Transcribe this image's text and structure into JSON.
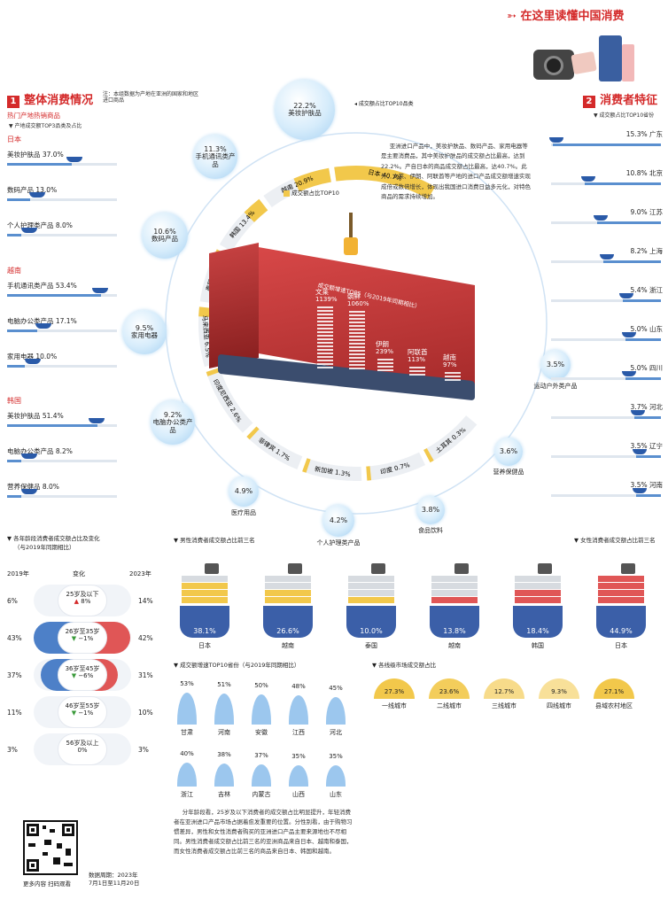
{
  "header": {
    "title": "在这里读懂中国消费",
    "brand": "中国消费"
  },
  "sec1": {
    "num": "1",
    "title": "整体消费情况",
    "note1": "注：本组数据为产地在亚洲的国家和地区",
    "note2": "进口商品",
    "hot": "热门产地热销商品",
    "sub": "产地成交额TOP3品类及占比"
  },
  "sec2": {
    "num": "2",
    "title": "消费者特征",
    "sub": "成交额占比TOP10省份"
  },
  "countries": [
    {
      "name": "日本",
      "items": [
        {
          "label": "美妆护肤品",
          "pct": "37.0%",
          "v": 37.0
        },
        {
          "label": "数码产品",
          "pct": "13.0%",
          "v": 13.0
        },
        {
          "label": "个人护理类产品",
          "pct": "8.0%",
          "v": 8.0
        }
      ]
    },
    {
      "name": "越南",
      "items": [
        {
          "label": "手机通讯类产品",
          "pct": "53.4%",
          "v": 53.4
        },
        {
          "label": "电脑办公类产品",
          "pct": "17.1%",
          "v": 17.1
        },
        {
          "label": "家用电器",
          "pct": "10.0%",
          "v": 10.0
        }
      ]
    },
    {
      "name": "韩国",
      "items": [
        {
          "label": "美妆护肤品",
          "pct": "51.4%",
          "v": 51.4
        },
        {
          "label": "电脑办公类产品",
          "pct": "8.2%",
          "v": 8.2
        },
        {
          "label": "营养保健品",
          "pct": "8.0%",
          "v": 8.0
        }
      ]
    }
  ],
  "top10_label": "成交额占比TOP10品类",
  "top10": [
    {
      "pct": "22.2%",
      "label": "美妆护肤品"
    },
    {
      "pct": "11.3%",
      "label": "手机通讯类产品"
    },
    {
      "pct": "10.6%",
      "label": "数码产品"
    },
    {
      "pct": "9.5%",
      "label": "家用电器"
    },
    {
      "pct": "9.2%",
      "label": "电脑办公类产品"
    },
    {
      "pct": "4.9%",
      "label": "医疗用品"
    },
    {
      "pct": "4.2%",
      "label": "个人护理类产品"
    },
    {
      "pct": "3.8%",
      "label": "食品饮料"
    },
    {
      "pct": "3.6%",
      "label": "营养保健品"
    },
    {
      "pct": "3.5%",
      "label": "运动户外类产品"
    }
  ],
  "ring_label": "成交额占比TOP10",
  "ring": [
    "日本 40.7%",
    "越南 20.9%",
    "韩国 13.4%",
    "泰国 9.0%",
    "马来西亚 6.5%",
    "印度尼西亚 2.6%",
    "菲律宾 1.7%",
    "新加坡 1.3%",
    "印度 0.7%",
    "土耳其 0.3%"
  ],
  "growth_title": "成交额增速TOP5（与2019年同期相比）",
  "growth": [
    {
      "name": "文莱",
      "v": "1139%",
      "value": 1139
    },
    {
      "name": "朝鲜",
      "v": "1060%",
      "value": 1060
    },
    {
      "name": "伊朗",
      "v": "239%",
      "value": 239
    },
    {
      "name": "阿联酋",
      "v": "113%",
      "value": 113
    },
    {
      "name": "越南",
      "v": "97%",
      "value": 97
    }
  ],
  "para1": "亚洲进口产品中，美妆护肤品、数码产品、家用电器等是主要消费品，其中美妆护肤品的成交额占比最高，达到22.2%。产自日本的商品成交额占比最高，达40.7%。此外，文莱、伊朗、阿联酋等产地的进口产品成交额增速实现成倍或数倍增长，体现出我国进口消费日益多元化，对特色商品的需求持续增加。",
  "provinces": [
    {
      "name": "广东",
      "pct": "15.3%",
      "v": 15.3
    },
    {
      "name": "北京",
      "pct": "10.8%",
      "v": 10.8
    },
    {
      "name": "江苏",
      "pct": "9.0%",
      "v": 9.0
    },
    {
      "name": "上海",
      "pct": "8.2%",
      "v": 8.2
    },
    {
      "name": "浙江",
      "pct": "5.4%",
      "v": 5.4
    },
    {
      "name": "山东",
      "pct": "5.0%",
      "v": 5.0
    },
    {
      "name": "四川",
      "pct": "5.0%",
      "v": 5.0
    },
    {
      "name": "河北",
      "pct": "3.7%",
      "v": 3.7
    },
    {
      "name": "辽宁",
      "pct": "3.5%",
      "v": 3.5
    },
    {
      "name": "河南",
      "pct": "3.5%",
      "v": 3.5
    }
  ],
  "age": {
    "title": "各年龄段消费者成交额占比及变化",
    "sub": "（与2019年同期相比）",
    "h2019": "2019年",
    "hchg": "变化",
    "h2023": "2023年",
    "rows": [
      {
        "label": "25岁及以下",
        "chg": "8%",
        "dir": "up",
        "y2019": "6%",
        "y2023": "14%",
        "v2019": 6,
        "v2023": 14
      },
      {
        "label": "26岁至35岁",
        "chg": "−1%",
        "dir": "down",
        "y2019": "43%",
        "y2023": "42%",
        "v2019": 43,
        "v2023": 42
      },
      {
        "label": "36岁至45岁",
        "chg": "−6%",
        "dir": "down",
        "y2019": "37%",
        "y2023": "31%",
        "v2019": 37,
        "v2023": 31
      },
      {
        "label": "46岁至55岁",
        "chg": "−1%",
        "dir": "down",
        "y2019": "11%",
        "y2023": "10%",
        "v2019": 11,
        "v2023": 10
      },
      {
        "label": "56岁及以上",
        "chg": "0%",
        "dir": "",
        "y2019": "3%",
        "y2023": "3%",
        "v2019": 3,
        "v2023": 3
      }
    ]
  },
  "male_title": "男性消费者成交额占比前三名",
  "female_title": "女性消费者成交额占比前三名",
  "ships": [
    {
      "pct": "38.1%",
      "name": "日本",
      "v": 38.1,
      "color": "#f2c84b"
    },
    {
      "pct": "26.6%",
      "name": "越南",
      "v": 26.6,
      "color": "#f2c84b"
    },
    {
      "pct": "10.0%",
      "name": "泰国",
      "v": 10.0,
      "color": "#f2c84b"
    },
    {
      "pct": "13.8%",
      "name": "越南",
      "v": 13.8,
      "color": "#e05656"
    },
    {
      "pct": "18.4%",
      "name": "韩国",
      "v": 18.4,
      "color": "#e05656"
    },
    {
      "pct": "44.9%",
      "name": "日本",
      "v": 44.9,
      "color": "#e05656"
    }
  ],
  "prov_growth_title": "成交额增速TOP10省份（与2019年同期相比）",
  "prov_growth": [
    {
      "pct": "53%",
      "name": "甘肃",
      "v": 53
    },
    {
      "pct": "51%",
      "name": "河南",
      "v": 51
    },
    {
      "pct": "50%",
      "name": "安徽",
      "v": 50
    },
    {
      "pct": "48%",
      "name": "江西",
      "v": 48
    },
    {
      "pct": "45%",
      "name": "河北",
      "v": 45
    },
    {
      "pct": "40%",
      "name": "浙江",
      "v": 40
    },
    {
      "pct": "38%",
      "name": "吉林",
      "v": 38
    },
    {
      "pct": "37%",
      "name": "内蒙古",
      "v": 37
    },
    {
      "pct": "35%",
      "name": "山西",
      "v": 35
    },
    {
      "pct": "35%",
      "name": "山东",
      "v": 35
    }
  ],
  "city_title": "各线级市场成交额占比",
  "cities": [
    {
      "pct": "27.3%",
      "name": "一线城市",
      "v": 27.3
    },
    {
      "pct": "23.6%",
      "name": "二线城市",
      "v": 23.6
    },
    {
      "pct": "12.7%",
      "name": "三线城市",
      "v": 12.7
    },
    {
      "pct": "9.3%",
      "name": "四线城市",
      "v": 9.3
    },
    {
      "pct": "27.1%",
      "name": "县域农村地区",
      "v": 27.1
    }
  ],
  "para2": "分年龄段看，25岁及以下消费者的成交额占比明显提升，年轻消费者在亚洲进口产品市场占据着愈发重要的位置。分性别看，由于购物习惯差异，男性和女性消费者购买的亚洲进口产品主要来源地也不尽相同。男性消费者成交额占比前三名的亚洲商品来自日本、越南和泰国，而女性消费者成交额占比前三名的商品来自日本、韩国和越南。",
  "qr": {
    "line1": "更多内容 扫码观看"
  },
  "period": {
    "line1": "数据周期：2023年",
    "line2": "7月1日至11月20日"
  }
}
